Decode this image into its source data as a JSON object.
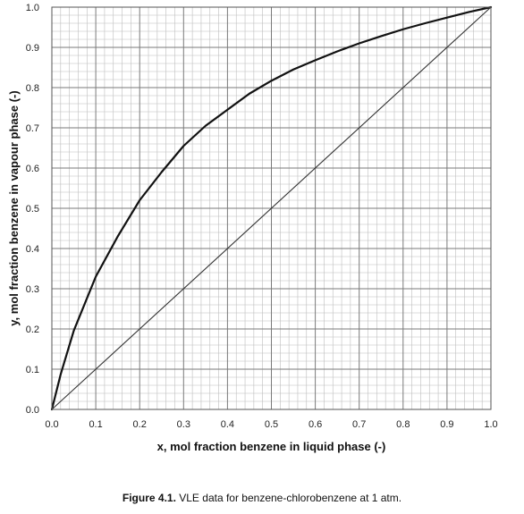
{
  "chart_data": {
    "type": "line",
    "xlabel": "x, mol fraction benzene in liquid phase (-)",
    "ylabel": "y, mol fraction benzene  in vapour phase (-)",
    "xlim": [
      0.0,
      1.0
    ],
    "ylim": [
      0.0,
      1.0
    ],
    "x_ticks": [
      "0.0",
      "0.1",
      "0.2",
      "0.3",
      "0.4",
      "0.5",
      "0.6",
      "0.7",
      "0.8",
      "0.9",
      "1.0"
    ],
    "y_ticks": [
      "0.0",
      "0.1",
      "0.2",
      "0.3",
      "0.4",
      "0.5",
      "0.6",
      "0.7",
      "0.8",
      "0.9",
      "1.0"
    ],
    "grid": true,
    "minor_grid_per_major": 5,
    "series": [
      {
        "style": "equilibrium-curve",
        "color": "#111111",
        "points": [
          [
            0.0,
            0.0
          ],
          [
            0.02,
            0.087
          ],
          [
            0.05,
            0.196
          ],
          [
            0.1,
            0.33
          ],
          [
            0.15,
            0.43
          ],
          [
            0.2,
            0.52
          ],
          [
            0.25,
            0.59
          ],
          [
            0.3,
            0.655
          ],
          [
            0.35,
            0.705
          ],
          [
            0.4,
            0.745
          ],
          [
            0.45,
            0.785
          ],
          [
            0.5,
            0.817
          ],
          [
            0.55,
            0.845
          ],
          [
            0.6,
            0.868
          ],
          [
            0.65,
            0.89
          ],
          [
            0.7,
            0.91
          ],
          [
            0.75,
            0.928
          ],
          [
            0.8,
            0.945
          ],
          [
            0.85,
            0.96
          ],
          [
            0.9,
            0.974
          ],
          [
            0.95,
            0.988
          ],
          [
            1.0,
            1.0
          ]
        ]
      },
      {
        "style": "diagonal",
        "color": "#333333",
        "points": [
          [
            0.0,
            0.0
          ],
          [
            1.0,
            1.0
          ]
        ]
      }
    ]
  },
  "caption": {
    "label": "Figure 4.1.",
    "text": " VLE data for benzene-chlorobenzene at 1 atm."
  }
}
